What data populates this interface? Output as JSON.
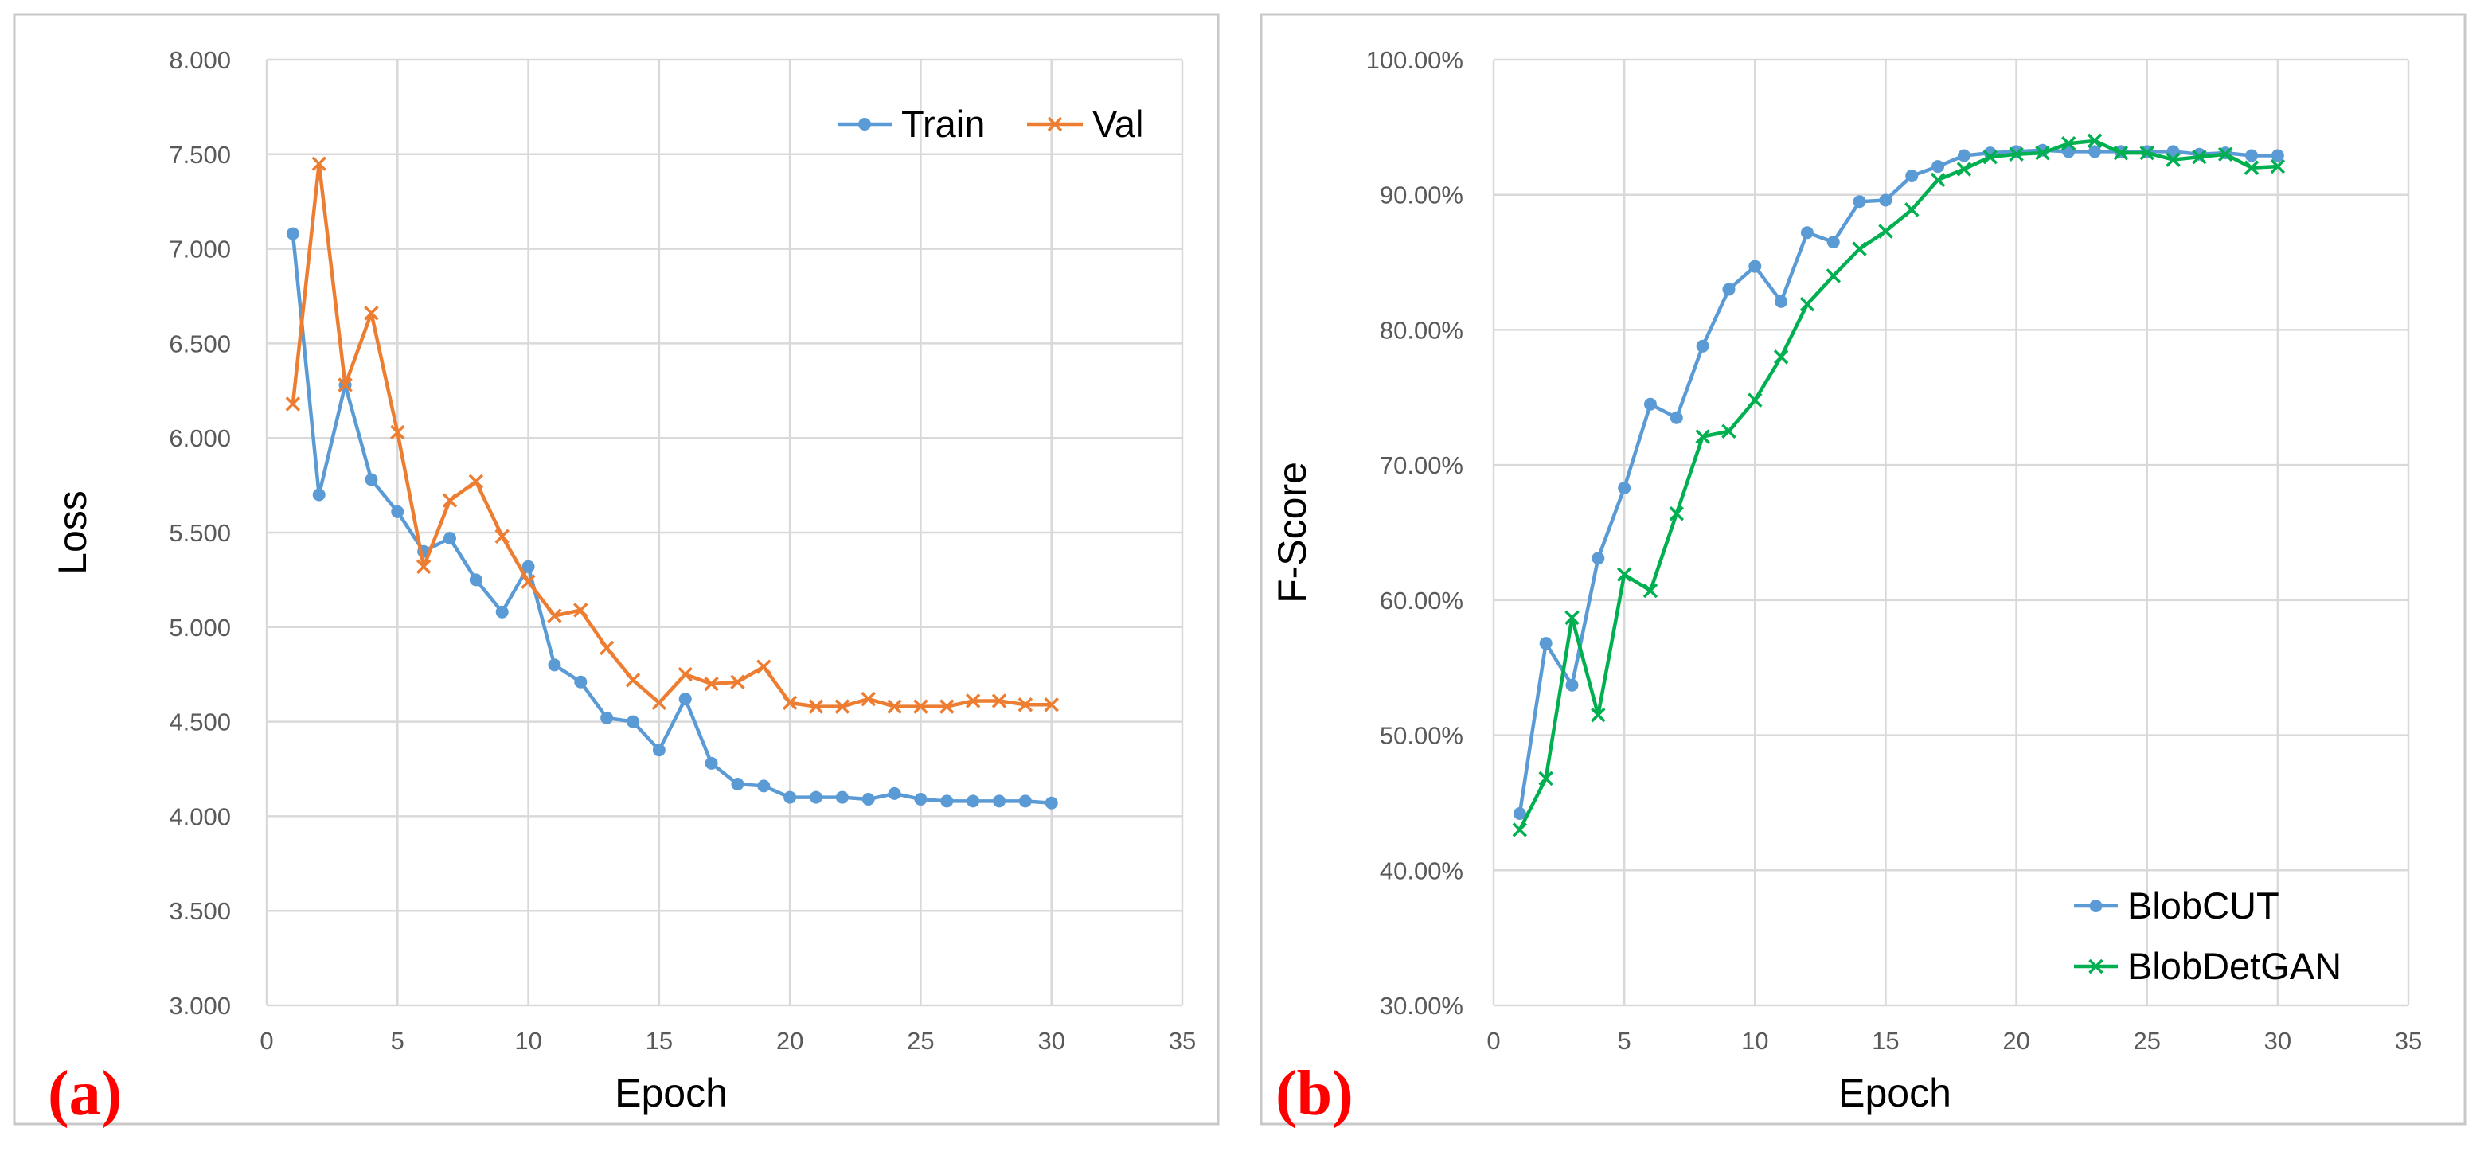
{
  "chart_data": [
    {
      "panel": "(a)",
      "type": "line",
      "title": "",
      "xlabel": "Epoch",
      "ylabel": "Loss",
      "xlim": [
        0,
        35
      ],
      "ylim": [
        3.0,
        8.0
      ],
      "x_ticks": [
        "0",
        "5",
        "10",
        "15",
        "20",
        "25",
        "30",
        "35"
      ],
      "y_ticks": [
        "3.000",
        "3.500",
        "4.000",
        "4.500",
        "5.000",
        "5.500",
        "6.000",
        "6.500",
        "7.000",
        "7.500",
        "8.000"
      ],
      "grid": true,
      "legend_position": "top-right",
      "x": [
        1,
        2,
        3,
        4,
        5,
        6,
        7,
        8,
        9,
        10,
        11,
        12,
        13,
        14,
        15,
        16,
        17,
        18,
        19,
        20,
        21,
        22,
        23,
        24,
        25,
        26,
        27,
        28,
        29,
        30
      ],
      "series": [
        {
          "name": "Train",
          "color": "#5b9bd5",
          "marker": "circle",
          "values": [
            7.08,
            5.7,
            6.28,
            5.78,
            5.61,
            5.4,
            5.47,
            5.25,
            5.08,
            5.32,
            4.8,
            4.71,
            4.52,
            4.5,
            4.35,
            4.62,
            4.28,
            4.17,
            4.16,
            4.1,
            4.1,
            4.1,
            4.09,
            4.12,
            4.09,
            4.08,
            4.08,
            4.08,
            4.08,
            4.07
          ]
        },
        {
          "name": "Val",
          "color": "#ed7d31",
          "marker": "x",
          "values": [
            6.18,
            7.45,
            6.28,
            6.66,
            6.03,
            5.32,
            5.67,
            5.77,
            5.48,
            5.24,
            5.06,
            5.09,
            4.89,
            4.72,
            4.6,
            4.75,
            4.7,
            4.71,
            4.79,
            4.6,
            4.58,
            4.58,
            4.62,
            4.58,
            4.58,
            4.58,
            4.61,
            4.61,
            4.59,
            4.59
          ]
        }
      ]
    },
    {
      "panel": "(b)",
      "type": "line",
      "title": "",
      "xlabel": "Epoch",
      "ylabel": "F-Score",
      "xlim": [
        0,
        35
      ],
      "ylim": [
        30,
        100
      ],
      "x_ticks": [
        "0",
        "5",
        "10",
        "15",
        "20",
        "25",
        "30",
        "35"
      ],
      "y_ticks": [
        "30.00%",
        "40.00%",
        "50.00%",
        "60.00%",
        "70.00%",
        "80.00%",
        "90.00%",
        "100.00%"
      ],
      "grid": true,
      "legend_position": "bottom-right",
      "x": [
        1,
        2,
        3,
        4,
        5,
        6,
        7,
        8,
        9,
        10,
        11,
        12,
        13,
        14,
        15,
        16,
        17,
        18,
        19,
        20,
        21,
        22,
        23,
        24,
        25,
        26,
        27,
        28,
        29,
        30
      ],
      "series": [
        {
          "name": "BlobCUT",
          "color": "#5b9bd5",
          "marker": "circle",
          "values": [
            44.2,
            56.8,
            53.7,
            63.1,
            68.3,
            74.5,
            73.5,
            78.8,
            83.0,
            84.7,
            82.1,
            87.2,
            86.5,
            89.5,
            89.6,
            91.4,
            92.1,
            92.9,
            93.1,
            93.2,
            93.3,
            93.2,
            93.2,
            93.2,
            93.2,
            93.2,
            93.0,
            93.1,
            92.9,
            92.9
          ]
        },
        {
          "name": "BlobDetGAN",
          "color": "#00b050",
          "marker": "x",
          "values": [
            43.0,
            46.8,
            58.7,
            51.5,
            61.9,
            60.7,
            66.4,
            72.1,
            72.5,
            74.8,
            78.0,
            81.9,
            84.0,
            86.0,
            87.3,
            88.9,
            91.1,
            91.9,
            92.8,
            93.0,
            93.1,
            93.8,
            94.0,
            93.1,
            93.1,
            92.6,
            92.8,
            93.0,
            92.0,
            92.1
          ]
        }
      ]
    }
  ]
}
